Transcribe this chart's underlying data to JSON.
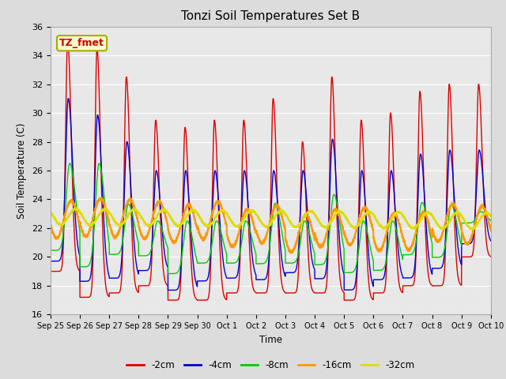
{
  "title": "Tonzi Soil Temperatures Set B",
  "xlabel": "Time",
  "ylabel": "Soil Temperature (C)",
  "ylim": [
    16,
    36
  ],
  "background_color": "#dcdcdc",
  "plot_bg_color": "#e8e8e8",
  "annotation_label": "TZ_fmet",
  "annotation_bg": "#ffffcc",
  "annotation_border": "#aaaa00",
  "xtick_labels": [
    "Sep 25",
    "Sep 26",
    "Sep 27",
    "Sep 28",
    "Sep 29",
    "Sep 30",
    "Oct 1",
    "Oct 2",
    "Oct 3",
    "Oct 4",
    "Oct 5",
    "Oct 6",
    "Oct 7",
    "Oct 8",
    "Oct 9",
    "Oct 10"
  ],
  "series": [
    {
      "label": "-2cm",
      "color": "#dd0000",
      "lw": 1.0
    },
    {
      "label": "-4cm",
      "color": "#0000cc",
      "lw": 1.0
    },
    {
      "label": "-8cm",
      "color": "#00cc00",
      "lw": 1.0
    },
    {
      "label": "-16cm",
      "color": "#ff9900",
      "lw": 1.5
    },
    {
      "label": "-32cm",
      "color": "#dddd00",
      "lw": 1.5
    }
  ]
}
